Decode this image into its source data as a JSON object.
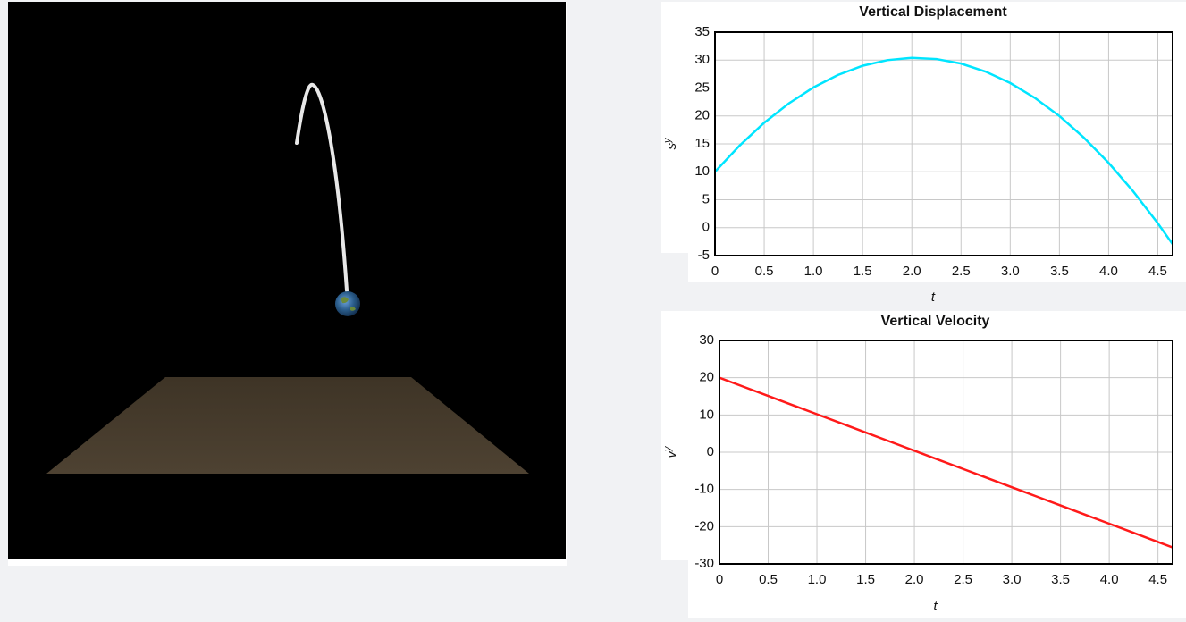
{
  "chart_data": [
    {
      "type": "line",
      "title": "Vertical Displacement",
      "xlabel": "t",
      "ylabel": "s",
      "ylabel_superscript": "y",
      "x": [
        0,
        0.25,
        0.5,
        0.75,
        1,
        1.25,
        1.5,
        1.75,
        2,
        2.25,
        2.5,
        2.75,
        3,
        3.25,
        3.5,
        3.75,
        4,
        4.25,
        4.5,
        4.65
      ],
      "series": [
        {
          "color": "#00e5ff",
          "values": [
            10,
            14.69,
            18.78,
            22.24,
            25.1,
            27.34,
            28.98,
            29.99,
            30.4,
            30.19,
            29.38,
            27.94,
            25.9,
            23.24,
            19.98,
            16.09,
            11.6,
            6.49,
            0.78,
            -2.95
          ]
        }
      ],
      "xlim": [
        0,
        4.65
      ],
      "xticks": [
        0,
        0.5,
        {
          "value": 1,
          "label": "1.0"
        },
        1.5,
        {
          "value": 2,
          "label": "2.0"
        },
        2.5,
        {
          "value": 3,
          "label": "3.0"
        },
        3.5,
        {
          "value": 4,
          "label": "4.0"
        },
        4.5
      ],
      "ylim": [
        -5,
        35
      ],
      "yticks": [
        -5,
        0,
        5,
        10,
        15,
        20,
        25,
        30,
        35
      ],
      "grid": true
    },
    {
      "type": "line",
      "title": "Vertical Velocity",
      "xlabel": "t",
      "ylabel": "v",
      "ylabel_superscript": "y",
      "x": [
        0,
        0.25,
        0.5,
        0.75,
        1,
        1.25,
        1.5,
        1.75,
        2,
        2.25,
        2.5,
        2.75,
        3,
        3.25,
        3.5,
        3.75,
        4,
        4.25,
        4.5,
        4.65
      ],
      "series": [
        {
          "color": "#ff1a1a",
          "values": [
            20,
            17.55,
            15.1,
            12.65,
            10.2,
            7.75,
            5.3,
            2.85,
            0.4,
            -2.05,
            -4.5,
            -6.95,
            -9.4,
            -11.85,
            -14.3,
            -16.75,
            -19.2,
            -21.65,
            -24.1,
            -25.57
          ]
        }
      ],
      "xlim": [
        0,
        4.65
      ],
      "xticks": [
        0,
        0.5,
        {
          "value": 1,
          "label": "1.0"
        },
        1.5,
        {
          "value": 2,
          "label": "2.0"
        },
        2.5,
        {
          "value": 3,
          "label": "3.0"
        },
        3.5,
        {
          "value": 4,
          "label": "4.0"
        },
        4.5
      ],
      "ylim": [
        -30,
        30
      ],
      "yticks": [
        -30,
        -20,
        -10,
        0,
        10,
        20,
        30
      ],
      "grid": true
    }
  ]
}
